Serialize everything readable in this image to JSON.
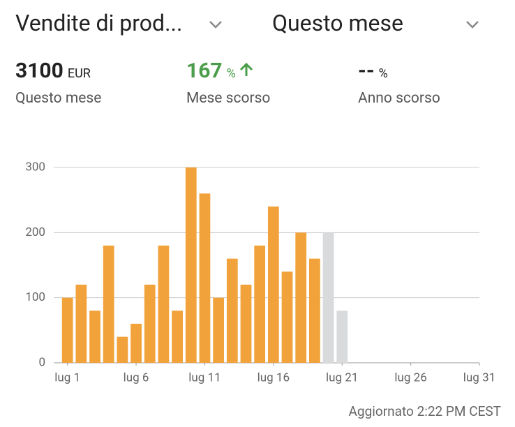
{
  "header": {
    "metric": "Vendite di prod...",
    "period": "Questo mese"
  },
  "stats": [
    {
      "value": "3100",
      "unit": "EUR",
      "label": "Questo mese"
    },
    {
      "value": "167",
      "unit": "%",
      "label": "Mese scorso"
    },
    {
      "value": "--",
      "unit": "%",
      "label": "Anno scorso"
    }
  ],
  "chart_data": {
    "type": "bar",
    "x": [
      1,
      2,
      3,
      4,
      5,
      6,
      7,
      8,
      9,
      10,
      11,
      12,
      13,
      14,
      15,
      16,
      17,
      18,
      19,
      20,
      21
    ],
    "values": [
      100,
      120,
      80,
      180,
      40,
      60,
      120,
      180,
      80,
      300,
      260,
      100,
      160,
      120,
      180,
      240,
      140,
      200,
      160,
      200,
      80
    ],
    "colors": [
      "#f2a23a",
      "#f2a23a",
      "#f2a23a",
      "#f2a23a",
      "#f2a23a",
      "#f2a23a",
      "#f2a23a",
      "#f2a23a",
      "#f2a23a",
      "#f2a23a",
      "#f2a23a",
      "#f2a23a",
      "#f2a23a",
      "#f2a23a",
      "#f2a23a",
      "#f2a23a",
      "#f2a23a",
      "#f2a23a",
      "#f2a23a",
      "#d9dadb",
      "#d9dadb"
    ],
    "xlim": [
      0,
      31
    ],
    "xticks": [
      {
        "value": 1,
        "label": "lug 1"
      },
      {
        "value": 6,
        "label": "lug 6"
      },
      {
        "value": 11,
        "label": "lug 11"
      },
      {
        "value": 16,
        "label": "lug 16"
      },
      {
        "value": 21,
        "label": "lug 21"
      },
      {
        "value": 26,
        "label": "lug 26"
      },
      {
        "value": 31,
        "label": "lug 31"
      }
    ],
    "ylim": [
      0,
      300
    ],
    "yticks": [
      0,
      100,
      200,
      300
    ],
    "grid": true
  },
  "footer": "Aggiornato 2:22 PM CEST"
}
